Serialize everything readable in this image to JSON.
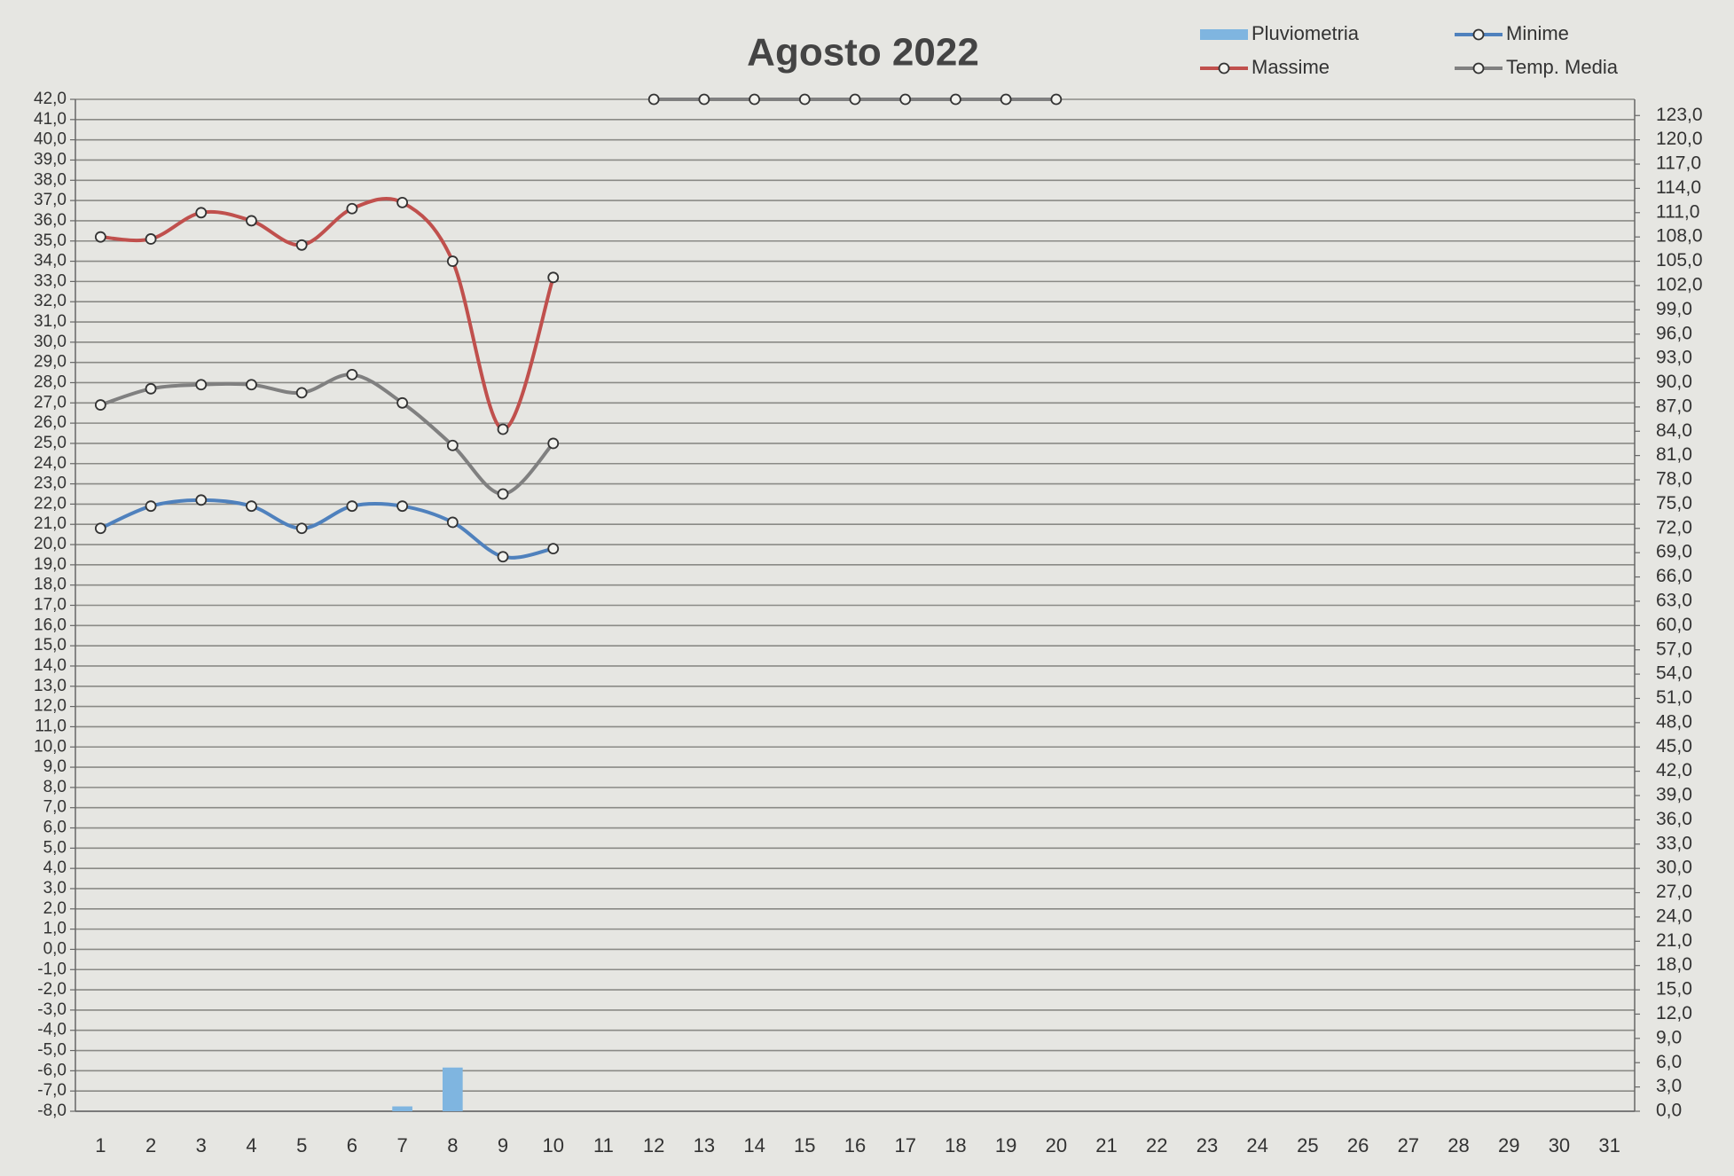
{
  "chart_data": {
    "type": "combo",
    "title": "Agosto 2022",
    "categories": [
      1,
      2,
      3,
      4,
      5,
      6,
      7,
      8,
      9,
      10,
      11,
      12,
      13,
      14,
      15,
      16,
      17,
      18,
      19,
      20,
      21,
      22,
      23,
      24,
      25,
      26,
      27,
      28,
      29,
      30,
      31
    ],
    "series": [
      {
        "name": "Pluviometria",
        "type": "bar",
        "axis": "y2",
        "color": "#7fb5e0",
        "values": [
          null,
          null,
          null,
          null,
          null,
          null,
          0.6,
          5.4,
          null,
          null,
          null,
          null,
          null,
          null,
          null,
          null,
          null,
          null,
          null,
          null,
          null,
          null,
          null,
          null,
          null,
          null,
          null,
          null,
          null,
          null,
          null
        ]
      },
      {
        "name": "Minime",
        "type": "line",
        "color": "#4f81bd",
        "values": [
          20.8,
          21.9,
          22.2,
          21.9,
          20.8,
          21.9,
          21.9,
          21.1,
          19.4,
          19.8,
          null,
          null,
          null,
          null,
          null,
          null,
          null,
          null,
          null,
          null,
          null,
          null,
          null,
          null,
          null,
          null,
          null,
          null,
          null,
          null,
          null
        ]
      },
      {
        "name": "Massime",
        "type": "line",
        "color": "#c0504d",
        "values": [
          35.2,
          35.1,
          36.4,
          36.0,
          34.8,
          36.6,
          36.9,
          34.0,
          25.7,
          33.2,
          null,
          null,
          null,
          null,
          null,
          null,
          null,
          null,
          null,
          null,
          null,
          null,
          null,
          null,
          null,
          null,
          null,
          null,
          null,
          null,
          null
        ]
      },
      {
        "name": "Temp. Media",
        "type": "line",
        "color": "#808080",
        "values": [
          26.9,
          27.7,
          27.9,
          27.9,
          27.5,
          28.4,
          27.0,
          24.9,
          22.5,
          25.0,
          null,
          42,
          42,
          42,
          42,
          42,
          42,
          42,
          42,
          42,
          null,
          null,
          null,
          null,
          null,
          null,
          null,
          null,
          null,
          null,
          null
        ]
      }
    ],
    "ylim": [
      -8,
      42
    ],
    "yticks": [
      {
        "value": -8,
        "label": "-8,0"
      },
      {
        "value": -7,
        "label": "-7,0"
      },
      {
        "value": -6,
        "label": "-6,0"
      },
      {
        "value": -5,
        "label": "-5,0"
      },
      {
        "value": -4,
        "label": "-4,0"
      },
      {
        "value": -3,
        "label": "-3,0"
      },
      {
        "value": -2,
        "label": "-2,0"
      },
      {
        "value": -1,
        "label": "-1,0"
      },
      {
        "value": 0,
        "label": "0,0"
      },
      {
        "value": 1,
        "label": "1,0"
      },
      {
        "value": 2,
        "label": "2,0"
      },
      {
        "value": 3,
        "label": "3,0"
      },
      {
        "value": 4,
        "label": "4,0"
      },
      {
        "value": 5,
        "label": "5,0"
      },
      {
        "value": 6,
        "label": "6,0"
      },
      {
        "value": 7,
        "label": "7,0"
      },
      {
        "value": 8,
        "label": "8,0"
      },
      {
        "value": 9,
        "label": "9,0"
      },
      {
        "value": 10,
        "label": "10,0"
      },
      {
        "value": 11,
        "label": "11,0"
      },
      {
        "value": 12,
        "label": "12,0"
      },
      {
        "value": 13,
        "label": "13,0"
      },
      {
        "value": 14,
        "label": "14,0"
      },
      {
        "value": 15,
        "label": "15,0"
      },
      {
        "value": 16,
        "label": "16,0"
      },
      {
        "value": 17,
        "label": "17,0"
      },
      {
        "value": 18,
        "label": "18,0"
      },
      {
        "value": 19,
        "label": "19,0"
      },
      {
        "value": 20,
        "label": "20,0"
      },
      {
        "value": 21,
        "label": "21,0"
      },
      {
        "value": 22,
        "label": "22,0"
      },
      {
        "value": 23,
        "label": "23,0"
      },
      {
        "value": 24,
        "label": "24,0"
      },
      {
        "value": 25,
        "label": "25,0"
      },
      {
        "value": 26,
        "label": "26,0"
      },
      {
        "value": 27,
        "label": "27,0"
      },
      {
        "value": 28,
        "label": "28,0"
      },
      {
        "value": 29,
        "label": "29,0"
      },
      {
        "value": 30,
        "label": "30,0"
      },
      {
        "value": 31,
        "label": "31,0"
      },
      {
        "value": 32,
        "label": "32,0"
      },
      {
        "value": 33,
        "label": "33,0"
      },
      {
        "value": 34,
        "label": "34,0"
      },
      {
        "value": 35,
        "label": "35,0"
      },
      {
        "value": 36,
        "label": "36,0"
      },
      {
        "value": 37,
        "label": "37,0"
      },
      {
        "value": 38,
        "label": "38,0"
      },
      {
        "value": 39,
        "label": "39,0"
      },
      {
        "value": 40,
        "label": "40,0"
      },
      {
        "value": 41,
        "label": "41,0"
      },
      {
        "value": 42,
        "label": "42,0"
      }
    ],
    "y2lim": [
      0,
      125
    ],
    "y2ticks": [
      {
        "value": 0,
        "label": "0,0"
      },
      {
        "value": 3,
        "label": "3,0"
      },
      {
        "value": 6,
        "label": "6,0"
      },
      {
        "value": 9,
        "label": "9,0"
      },
      {
        "value": 12,
        "label": "12,0"
      },
      {
        "value": 15,
        "label": "15,0"
      },
      {
        "value": 18,
        "label": "18,0"
      },
      {
        "value": 21,
        "label": "21,0"
      },
      {
        "value": 24,
        "label": "24,0"
      },
      {
        "value": 27,
        "label": "27,0"
      },
      {
        "value": 30,
        "label": "30,0"
      },
      {
        "value": 33,
        "label": "33,0"
      },
      {
        "value": 36,
        "label": "36,0"
      },
      {
        "value": 39,
        "label": "39,0"
      },
      {
        "value": 42,
        "label": "42,0"
      },
      {
        "value": 45,
        "label": "45,0"
      },
      {
        "value": 48,
        "label": "48,0"
      },
      {
        "value": 51,
        "label": "51,0"
      },
      {
        "value": 54,
        "label": "54,0"
      },
      {
        "value": 57,
        "label": "57,0"
      },
      {
        "value": 60,
        "label": "60,0"
      },
      {
        "value": 63,
        "label": "63,0"
      },
      {
        "value": 66,
        "label": "66,0"
      },
      {
        "value": 69,
        "label": "69,0"
      },
      {
        "value": 72,
        "label": "72,0"
      },
      {
        "value": 75,
        "label": "75,0"
      },
      {
        "value": 78,
        "label": "78,0"
      },
      {
        "value": 81,
        "label": "81,0"
      },
      {
        "value": 84,
        "label": "84,0"
      },
      {
        "value": 87,
        "label": "87,0"
      },
      {
        "value": 90,
        "label": "90,0"
      },
      {
        "value": 93,
        "label": "93,0"
      },
      {
        "value": 96,
        "label": "96,0"
      },
      {
        "value": 99,
        "label": "99,0"
      },
      {
        "value": 102,
        "label": "102,0"
      },
      {
        "value": 105,
        "label": "105,0"
      },
      {
        "value": 108,
        "label": "108,0"
      },
      {
        "value": 111,
        "label": "111,0"
      },
      {
        "value": 114,
        "label": "114,0"
      },
      {
        "value": 117,
        "label": "117,0"
      },
      {
        "value": 120,
        "label": "120,0"
      },
      {
        "value": 123,
        "label": "123,0"
      }
    ],
    "grid": true,
    "legend": "top-right"
  }
}
